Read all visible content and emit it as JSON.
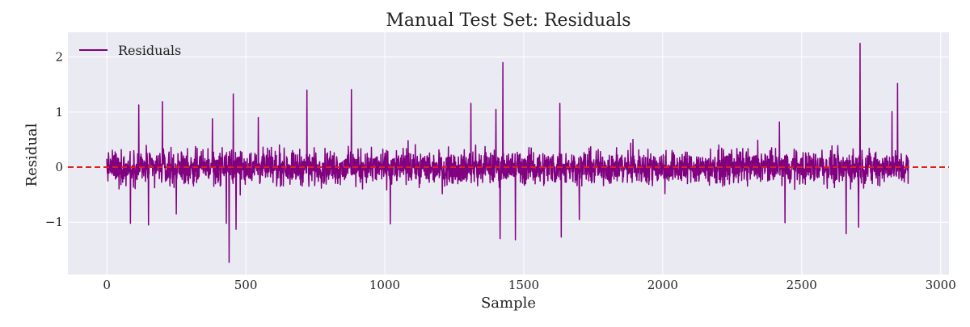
{
  "chart_data": {
    "type": "line",
    "title": "Manual Test Set: Residuals",
    "xlabel": "Sample",
    "ylabel": "Residual",
    "xlim": [
      -140,
      3030
    ],
    "ylim": [
      -1.95,
      2.45
    ],
    "x_ticks": [
      0,
      500,
      1000,
      1500,
      2000,
      2500,
      3000
    ],
    "x_tick_labels": [
      "0",
      "500",
      "1000",
      "1500",
      "2000",
      "2500",
      "3000"
    ],
    "y_ticks": [
      -1,
      0,
      1,
      2
    ],
    "y_tick_labels": [
      "−1",
      "0",
      "1",
      "2"
    ],
    "grid": true,
    "legend": {
      "position": "top-left"
    },
    "reference_line": {
      "y": 0,
      "color": "#e0201c",
      "style": "dashed"
    },
    "series": [
      {
        "name": "Residuals",
        "color": "#800080",
        "n_samples": 2885,
        "x_start": 0,
        "x_end": 2884,
        "typical_band": [
          -0.45,
          0.45
        ],
        "notable_points": [
          {
            "x": 85,
            "y": -1.02
          },
          {
            "x": 115,
            "y": 1.13
          },
          {
            "x": 150,
            "y": -1.05
          },
          {
            "x": 200,
            "y": 1.19
          },
          {
            "x": 250,
            "y": -0.85
          },
          {
            "x": 380,
            "y": 0.88
          },
          {
            "x": 430,
            "y": -1.02
          },
          {
            "x": 440,
            "y": -1.73
          },
          {
            "x": 455,
            "y": 1.33
          },
          {
            "x": 465,
            "y": -1.13
          },
          {
            "x": 545,
            "y": 0.9
          },
          {
            "x": 720,
            "y": 1.4
          },
          {
            "x": 880,
            "y": 1.41
          },
          {
            "x": 1020,
            "y": -1.03
          },
          {
            "x": 1310,
            "y": 1.16
          },
          {
            "x": 1400,
            "y": 1.05
          },
          {
            "x": 1415,
            "y": -1.3
          },
          {
            "x": 1425,
            "y": 1.9
          },
          {
            "x": 1470,
            "y": -1.32
          },
          {
            "x": 1630,
            "y": 1.16
          },
          {
            "x": 1635,
            "y": -1.27
          },
          {
            "x": 1700,
            "y": -0.95
          },
          {
            "x": 2420,
            "y": 0.82
          },
          {
            "x": 2440,
            "y": -1.01
          },
          {
            "x": 2660,
            "y": -1.21
          },
          {
            "x": 2705,
            "y": -1.09
          },
          {
            "x": 2710,
            "y": 2.25
          },
          {
            "x": 2825,
            "y": 1.01
          },
          {
            "x": 2845,
            "y": 1.52
          }
        ]
      }
    ]
  }
}
